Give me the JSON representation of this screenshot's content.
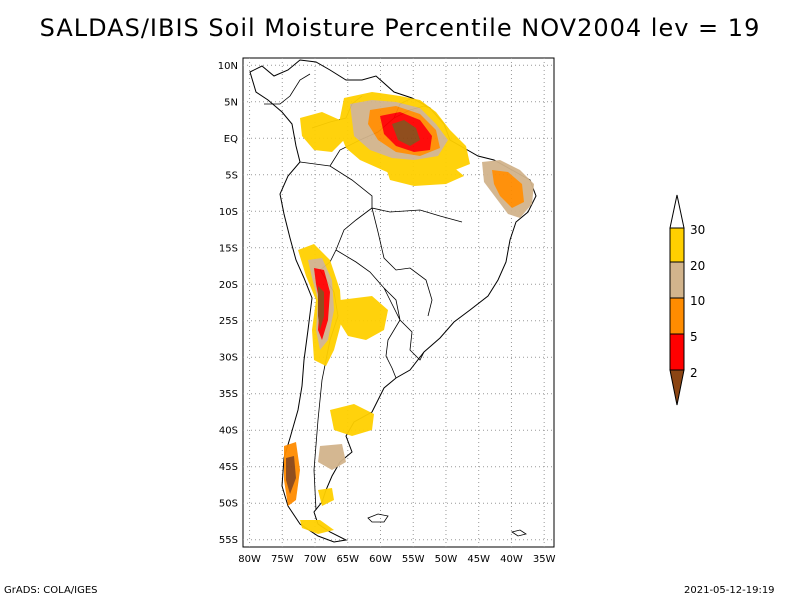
{
  "title": "SALDAS/IBIS Soil Moisture Percentile NOV2004 lev = 19",
  "map": {
    "lat_ticks": [
      "10N",
      "5N",
      "EQ",
      "5S",
      "10S",
      "15S",
      "20S",
      "25S",
      "30S",
      "35S",
      "40S",
      "45S",
      "50S",
      "55S"
    ],
    "lat_values": [
      10,
      5,
      0,
      -5,
      -10,
      -15,
      -20,
      -25,
      -30,
      -35,
      -40,
      -45,
      -50,
      -55
    ],
    "lon_ticks": [
      "80W",
      "75W",
      "70W",
      "65W",
      "60W",
      "55W",
      "50W",
      "45W",
      "40W",
      "35W"
    ],
    "lon_values": [
      -80,
      -75,
      -70,
      -65,
      -60,
      -55,
      -50,
      -45,
      -40,
      -35
    ],
    "lon_range": [
      -81,
      -33.5
    ],
    "lat_range": [
      -56,
      11
    ]
  },
  "legend": {
    "labels": [
      "30",
      "20",
      "10",
      "5",
      "2"
    ],
    "colors": [
      "#ffffff",
      "#ffd000",
      "#d2b48c",
      "#ff8c00",
      "#ff0000",
      "#8b4513"
    ]
  },
  "footer": {
    "left": "GrADS: COLA/IGES",
    "right": "2021-05-12-19:19"
  }
}
